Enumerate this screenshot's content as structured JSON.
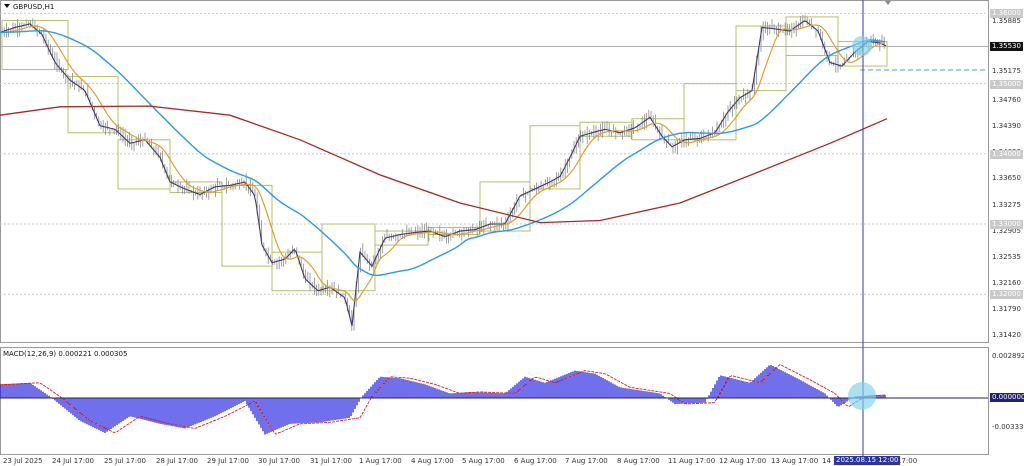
{
  "header": {
    "symbol_label": "GBPUSD,H1"
  },
  "price_axis": {
    "labels": [
      "1.35885",
      "1.35530",
      "1.35175",
      "1.34760",
      "1.34390",
      "1.34020",
      "1.33650",
      "1.33275",
      "1.32905",
      "1.32535",
      "1.32160",
      "1.31790",
      "1.31420"
    ],
    "current_price": "1.35530",
    "levels": [
      "1.36000",
      "1.35000",
      "1.34000",
      "1.33000",
      "1.32000"
    ]
  },
  "macd": {
    "indicator_label": "MACD(12,26,9) 0.000221 0.000305",
    "axis_labels": [
      "0.002892",
      "0.000000",
      "-0.003333"
    ]
  },
  "time_axis": {
    "labels": [
      "23 Jul 2025",
      "24 Jul 17:00",
      "25 Jul 17:00",
      "28 Jul 17:00",
      "29 Jul 17:00",
      "30 Jul 17:00",
      "31 Jul 17:00",
      "1 Aug 17:00",
      "4 Aug 17:00",
      "5 Aug 17:00",
      "6 Aug 17:00",
      "7 Aug 17:00",
      "8 Aug 17:00",
      "11 Aug 17:00",
      "12 Aug 17:00",
      "13 Aug 17:00",
      "14"
    ],
    "crosshair_time": "2025.08.15 12:00",
    "trailing_label": "17:00"
  },
  "colors": {
    "price_line": "#3a3a6e",
    "ma_fast": "#e0a028",
    "ma_mid": "#2b9be8",
    "ma_slow": "#a52a2a",
    "macd_hist": "#1010e0",
    "macd_signal": "#e02020",
    "grid": "#c8c8c8",
    "boxes": "#b5c06a",
    "crosshair": "#3333cc",
    "highlight": "#7fd3e8"
  },
  "chart_data": {
    "type": "line",
    "series": [],
    "ylim": [
      1.3132,
      1.3602
    ]
  }
}
